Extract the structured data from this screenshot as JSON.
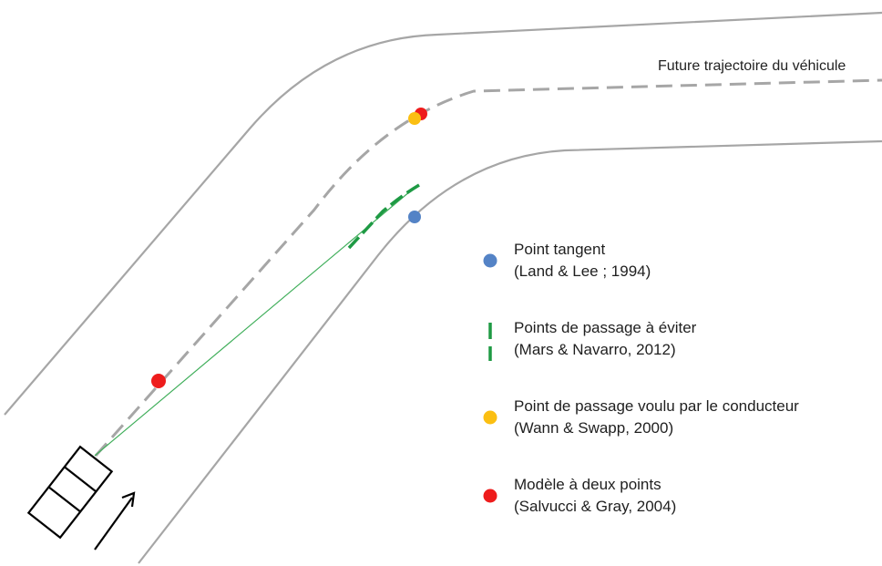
{
  "annotations": {
    "trajectory_label": "Future trajectoire du véhicule"
  },
  "colors": {
    "road": "#a6a6a6",
    "trajectory": "#a6a6a6",
    "tangent_point": "#5483c6",
    "avoid_points": "#1e9a44",
    "desired_point": "#fbbf12",
    "two_point_model": "#ee1c1c",
    "car": "#000000"
  },
  "legend": [
    {
      "marker": "circle",
      "color_key": "tangent_point",
      "title": "Point tangent",
      "citation": "(Land & Lee ; 1994)"
    },
    {
      "marker": "dashed-vertical-line",
      "color_key": "avoid_points",
      "title": "Points de passage à éviter",
      "citation": "(Mars & Navarro, 2012)"
    },
    {
      "marker": "circle",
      "color_key": "desired_point",
      "title": "Point de passage voulu par le conducteur",
      "citation": "(Wann & Swapp, 2000)"
    },
    {
      "marker": "circle",
      "color_key": "two_point_model",
      "title": "Modèle à deux points",
      "citation": "(Salvucci & Gray, 2004)"
    }
  ],
  "icons": {
    "car": "car-top-view-icon",
    "direction": "direction-arrow-icon"
  }
}
